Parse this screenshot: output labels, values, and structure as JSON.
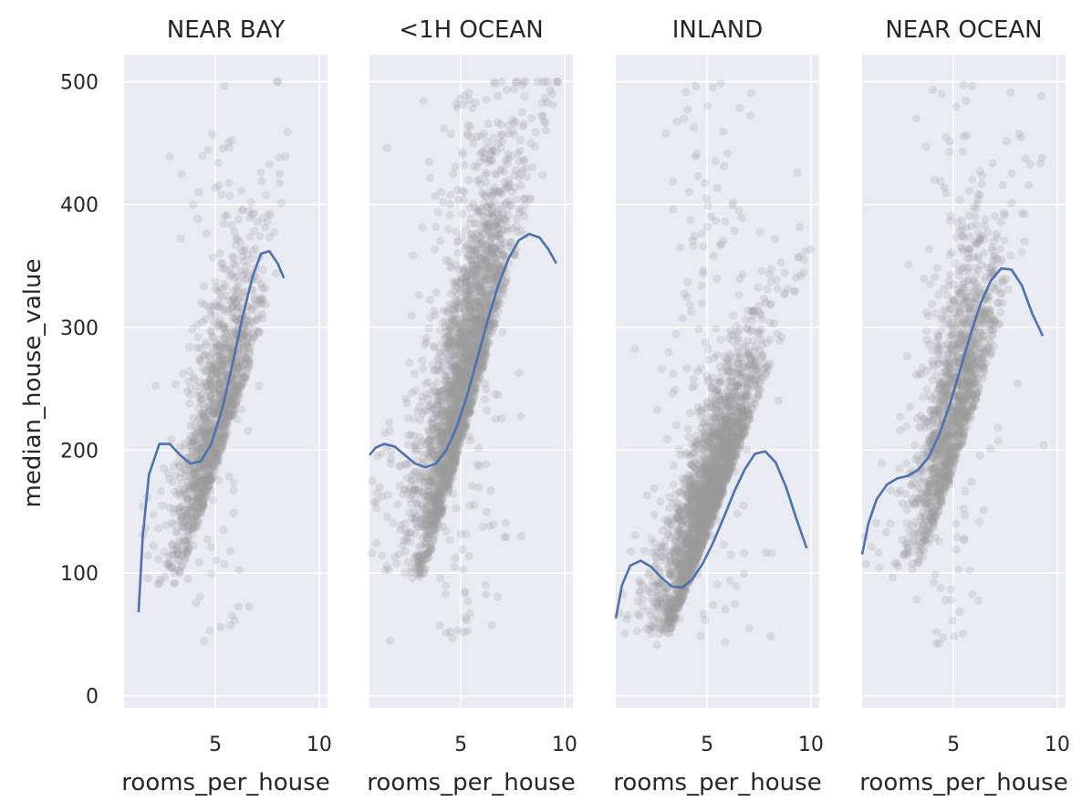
{
  "chart_data": {
    "type": "scatter",
    "ylabel": "median_house_value",
    "ylim": [
      -10,
      522
    ],
    "yticks": [
      0,
      100,
      200,
      300,
      400,
      500
    ],
    "xticks": [
      5,
      10
    ],
    "grid": true,
    "point_color": "#9a9a9a",
    "line_color": "#4c72b0",
    "panel_background": "#eaeaf2",
    "panels": [
      {
        "title": "NEAR BAY",
        "xlabel": "rooms_per_house",
        "xlim": [
          0.6,
          10.4
        ],
        "x_range": [
          1.3,
          8.5
        ],
        "point_cloud": {
          "n": 1400,
          "center_x": 5.0,
          "spread_x": 1.0,
          "base_y": 90,
          "slope": 52,
          "noise_y": 60
        },
        "trend": [
          [
            1.3,
            68
          ],
          [
            1.5,
            130
          ],
          [
            1.8,
            180
          ],
          [
            2.3,
            205
          ],
          [
            2.8,
            205
          ],
          [
            3.3,
            196
          ],
          [
            3.8,
            189
          ],
          [
            4.3,
            191
          ],
          [
            4.8,
            205
          ],
          [
            5.3,
            232
          ],
          [
            5.8,
            268
          ],
          [
            6.3,
            308
          ],
          [
            6.8,
            342
          ],
          [
            7.2,
            360
          ],
          [
            7.6,
            362
          ],
          [
            8.0,
            352
          ],
          [
            8.3,
            340
          ]
        ]
      },
      {
        "title": "<1H OCEAN",
        "xlabel": "rooms_per_house",
        "xlim": [
          0.6,
          10.4
        ],
        "x_range": [
          0.6,
          9.7
        ],
        "point_cloud": {
          "n": 2600,
          "center_x": 5.0,
          "spread_x": 1.15,
          "base_y": 95,
          "slope": 60,
          "noise_y": 70
        },
        "trend": [
          [
            0.6,
            196
          ],
          [
            0.9,
            202
          ],
          [
            1.3,
            205
          ],
          [
            1.8,
            203
          ],
          [
            2.3,
            196
          ],
          [
            2.8,
            189
          ],
          [
            3.3,
            186
          ],
          [
            3.8,
            189
          ],
          [
            4.3,
            200
          ],
          [
            4.8,
            219
          ],
          [
            5.3,
            244
          ],
          [
            5.8,
            275
          ],
          [
            6.3,
            306
          ],
          [
            6.8,
            334
          ],
          [
            7.3,
            356
          ],
          [
            7.8,
            371
          ],
          [
            8.3,
            376
          ],
          [
            8.8,
            373
          ],
          [
            9.2,
            364
          ],
          [
            9.6,
            352
          ]
        ]
      },
      {
        "title": "INLAND",
        "xlabel": "rooms_per_house",
        "xlim": [
          0.6,
          10.4
        ],
        "x_range": [
          0.6,
          10.0
        ],
        "point_cloud": {
          "n": 2400,
          "center_x": 5.0,
          "spread_x": 1.15,
          "base_y": 50,
          "slope": 45,
          "noise_y": 45
        },
        "trend": [
          [
            0.6,
            63
          ],
          [
            0.9,
            90
          ],
          [
            1.3,
            106
          ],
          [
            1.8,
            110
          ],
          [
            2.3,
            105
          ],
          [
            2.8,
            96
          ],
          [
            3.3,
            89
          ],
          [
            3.8,
            88
          ],
          [
            4.3,
            95
          ],
          [
            4.8,
            108
          ],
          [
            5.3,
            125
          ],
          [
            5.8,
            145
          ],
          [
            6.3,
            166
          ],
          [
            6.8,
            184
          ],
          [
            7.3,
            197
          ],
          [
            7.8,
            199
          ],
          [
            8.3,
            190
          ],
          [
            8.8,
            170
          ],
          [
            9.3,
            144
          ],
          [
            9.8,
            120
          ]
        ]
      },
      {
        "title": "NEAR OCEAN",
        "xlabel": "rooms_per_house",
        "xlim": [
          0.6,
          10.4
        ],
        "x_range": [
          0.6,
          9.5
        ],
        "point_cloud": {
          "n": 1500,
          "center_x": 5.0,
          "spread_x": 1.0,
          "base_y": 95,
          "slope": 50,
          "noise_y": 70
        },
        "trend": [
          [
            0.6,
            115
          ],
          [
            0.9,
            140
          ],
          [
            1.3,
            160
          ],
          [
            1.8,
            172
          ],
          [
            2.3,
            177
          ],
          [
            2.8,
            179
          ],
          [
            3.3,
            184
          ],
          [
            3.8,
            194
          ],
          [
            4.3,
            212
          ],
          [
            4.8,
            236
          ],
          [
            5.3,
            264
          ],
          [
            5.8,
            293
          ],
          [
            6.3,
            319
          ],
          [
            6.8,
            338
          ],
          [
            7.3,
            348
          ],
          [
            7.8,
            347
          ],
          [
            8.3,
            334
          ],
          [
            8.8,
            311
          ],
          [
            9.3,
            293
          ]
        ]
      }
    ]
  }
}
